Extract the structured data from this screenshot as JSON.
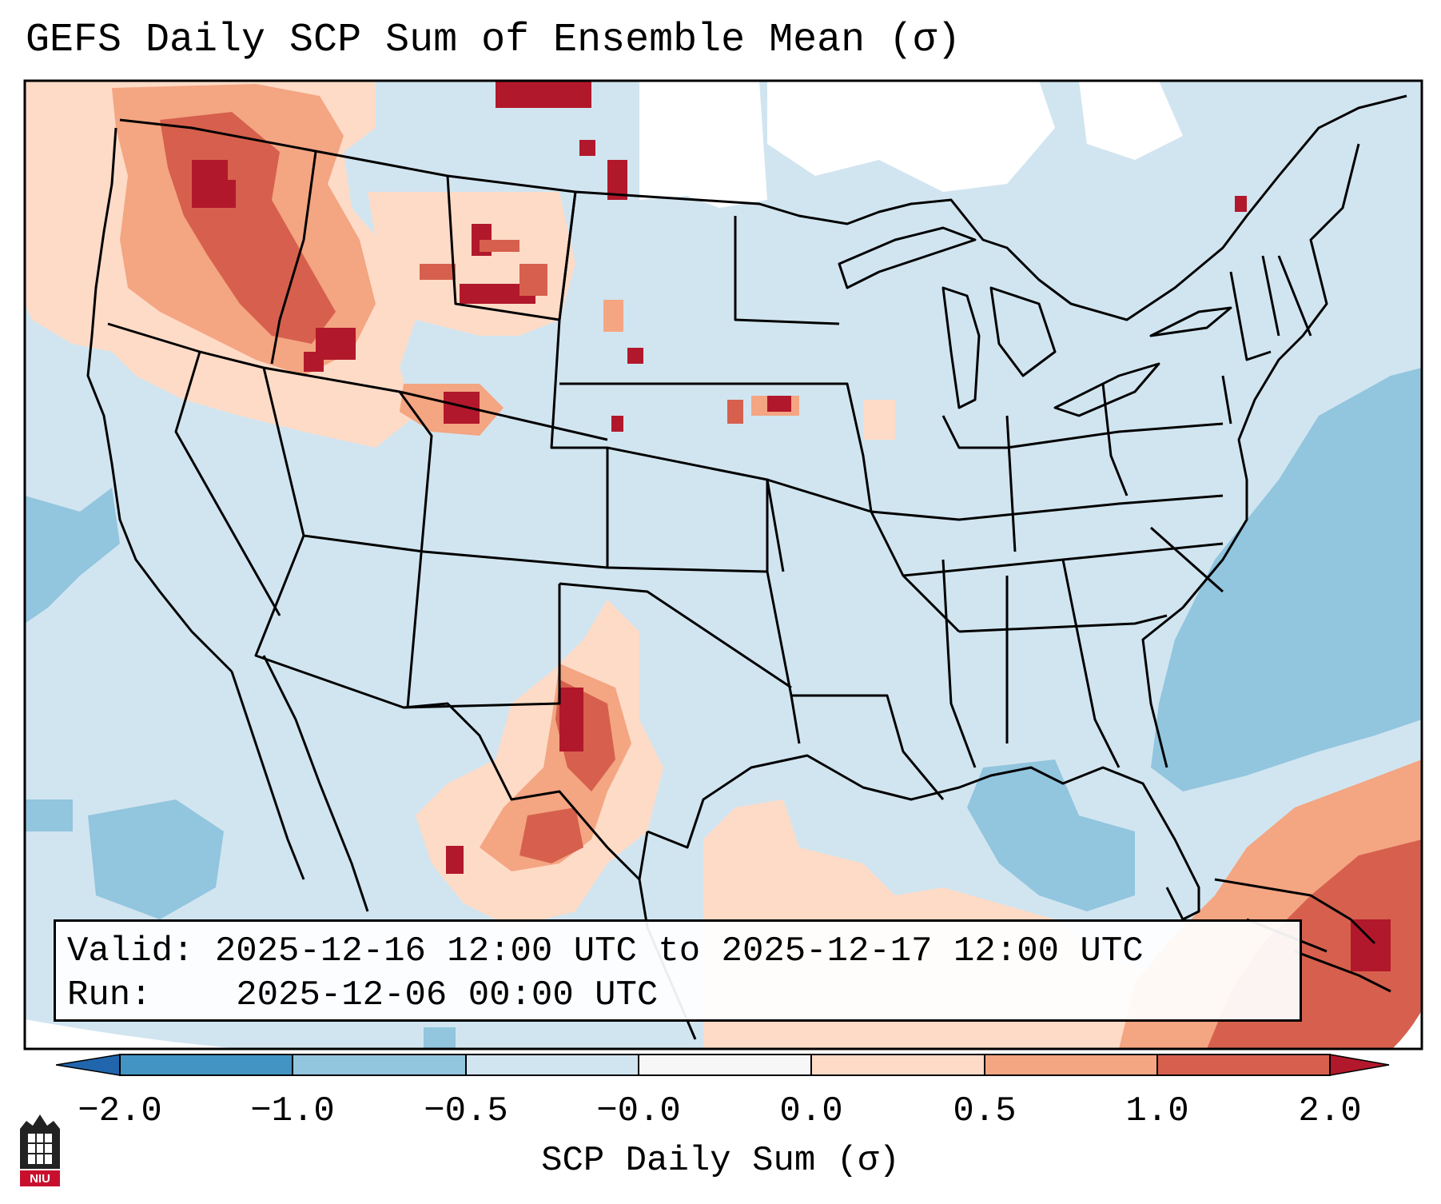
{
  "title": "GEFS Daily SCP Sum of Ensemble Mean (σ)",
  "info": {
    "valid_label": "Valid:",
    "valid_value": "2025-12-16 12:00 UTC to 2025-12-17 12:00 UTC",
    "run_label": "Run:",
    "run_value": "2025-12-06 00:00 UTC"
  },
  "colorbar": {
    "label": "SCP Daily Sum (σ)",
    "tick_labels": [
      "−2.0",
      "−1.0",
      "−0.5",
      "−0.0",
      "0.0",
      "0.5",
      "1.0",
      "2.0"
    ],
    "colors": {
      "under": "#2166ac",
      "neg_2_1": "#4393c3",
      "neg_1_05": "#92c5de",
      "neg_05_0": "#d1e5f0",
      "zero": "#f7f7f7",
      "pos_0_05": "#fddbc7",
      "pos_05_1": "#f4a582",
      "pos_1_2": "#d6604d",
      "over": "#b2182b"
    }
  },
  "map": {
    "background_color": "#d1e5f0",
    "boundary_color": "#000000"
  },
  "logo": {
    "text": "NIU",
    "color": "#c8102e"
  }
}
